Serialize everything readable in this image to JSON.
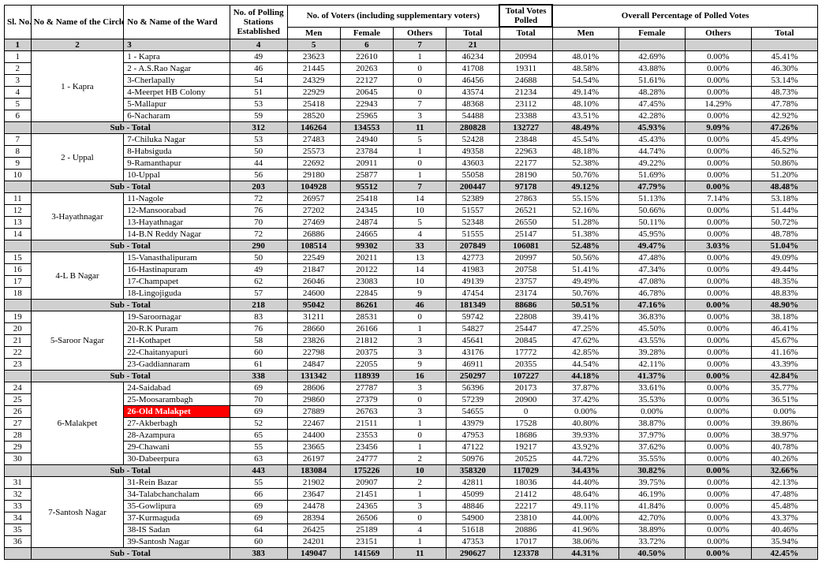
{
  "headers": {
    "sl": "Sl. No.",
    "circle": "No & Name of the Circle",
    "ward": "No & Name of the Ward",
    "ps": "No. of Polling Stations Established",
    "voters_group": "No. of Voters (including supplementary voters)",
    "tvp_group": "Total Votes Polled",
    "pct_group": "Overall Percentage of Polled Votes",
    "men": "Men",
    "female": "Female",
    "others": "Others",
    "total": "Total",
    "h_nums": [
      "1",
      "2",
      "3",
      "4",
      "5",
      "6",
      "7",
      "21"
    ]
  },
  "subtotal_label": "Sub - Total",
  "circles": [
    {
      "name": "1 - Kapra",
      "rows": [
        {
          "sl": "1",
          "ward": "1 - Kapra",
          "ps": "49",
          "m": "23623",
          "f": "22610",
          "o": "1",
          "t": "46234",
          "tvp": "20994",
          "pm": "48.01%",
          "pf": "42.69%",
          "po": "0.00%",
          "pt": "45.41%"
        },
        {
          "sl": "2",
          "ward": "2 - A.S.Rao Nagar",
          "ps": "46",
          "m": "21445",
          "f": "20263",
          "o": "0",
          "t": "41708",
          "tvp": "19311",
          "pm": "48.58%",
          "pf": "43.88%",
          "po": "0.00%",
          "pt": "46.30%"
        },
        {
          "sl": "3",
          "ward": "3-Cherlapally",
          "ps": "54",
          "m": "24329",
          "f": "22127",
          "o": "0",
          "t": "46456",
          "tvp": "24688",
          "pm": "54.54%",
          "pf": "51.61%",
          "po": "0.00%",
          "pt": "53.14%"
        },
        {
          "sl": "4",
          "ward": "4-Meerpet HB Colony",
          "ps": "51",
          "m": "22929",
          "f": "20645",
          "o": "0",
          "t": "43574",
          "tvp": "21234",
          "pm": "49.14%",
          "pf": "48.28%",
          "po": "0.00%",
          "pt": "48.73%"
        },
        {
          "sl": "5",
          "ward": "5-Mallapur",
          "ps": "53",
          "m": "25418",
          "f": "22943",
          "o": "7",
          "t": "48368",
          "tvp": "23112",
          "pm": "48.10%",
          "pf": "47.45%",
          "po": "14.29%",
          "pt": "47.78%"
        },
        {
          "sl": "6",
          "ward": "6-Nacharam",
          "ps": "59",
          "m": "28520",
          "f": "25965",
          "o": "3",
          "t": "54488",
          "tvp": "23388",
          "pm": "43.51%",
          "pf": "42.28%",
          "po": "0.00%",
          "pt": "42.92%"
        }
      ],
      "sub": {
        "ps": "312",
        "m": "146264",
        "f": "134553",
        "o": "11",
        "t": "280828",
        "tvp": "132727",
        "pm": "48.49%",
        "pf": "45.93%",
        "po": "9.09%",
        "pt": "47.26%"
      }
    },
    {
      "name": "2 - Uppal",
      "rows": [
        {
          "sl": "7",
          "ward": "7-Chiluka Nagar",
          "ps": "53",
          "m": "27483",
          "f": "24940",
          "o": "5",
          "t": "52428",
          "tvp": "23848",
          "pm": "45.54%",
          "pf": "45.43%",
          "po": "0.00%",
          "pt": "45.49%"
        },
        {
          "sl": "8",
          "ward": "8-Habsiguda",
          "ps": "50",
          "m": "25573",
          "f": "23784",
          "o": "1",
          "t": "49358",
          "tvp": "22963",
          "pm": "48.18%",
          "pf": "44.74%",
          "po": "0.00%",
          "pt": "46.52%"
        },
        {
          "sl": "9",
          "ward": "9-Ramanthapur",
          "ps": "44",
          "m": "22692",
          "f": "20911",
          "o": "0",
          "t": "43603",
          "tvp": "22177",
          "pm": "52.38%",
          "pf": "49.22%",
          "po": "0.00%",
          "pt": "50.86%"
        },
        {
          "sl": "10",
          "ward": "10-Uppal",
          "ps": "56",
          "m": "29180",
          "f": "25877",
          "o": "1",
          "t": "55058",
          "tvp": "28190",
          "pm": "50.76%",
          "pf": "51.69%",
          "po": "0.00%",
          "pt": "51.20%"
        }
      ],
      "sub": {
        "ps": "203",
        "m": "104928",
        "f": "95512",
        "o": "7",
        "t": "200447",
        "tvp": "97178",
        "pm": "49.12%",
        "pf": "47.79%",
        "po": "0.00%",
        "pt": "48.48%"
      }
    },
    {
      "name": "3-Hayathnagar",
      "rows": [
        {
          "sl": "11",
          "ward": "11-Nagole",
          "ps": "72",
          "m": "26957",
          "f": "25418",
          "o": "14",
          "t": "52389",
          "tvp": "27863",
          "pm": "55.15%",
          "pf": "51.13%",
          "po": "7.14%",
          "pt": "53.18%"
        },
        {
          "sl": "12",
          "ward": "12-Mansoorabad",
          "ps": "76",
          "m": "27202",
          "f": "24345",
          "o": "10",
          "t": "51557",
          "tvp": "26521",
          "pm": "52.16%",
          "pf": "50.66%",
          "po": "0.00%",
          "pt": "51.44%"
        },
        {
          "sl": "13",
          "ward": "13-Hayathnagar",
          "ps": "70",
          "m": "27469",
          "f": "24874",
          "o": "5",
          "t": "52348",
          "tvp": "26550",
          "pm": "51.28%",
          "pf": "50.11%",
          "po": "0.00%",
          "pt": "50.72%"
        },
        {
          "sl": "14",
          "ward": "14-B.N Reddy Nagar",
          "ps": "72",
          "m": "26886",
          "f": "24665",
          "o": "4",
          "t": "51555",
          "tvp": "25147",
          "pm": "51.38%",
          "pf": "45.95%",
          "po": "0.00%",
          "pt": "48.78%"
        }
      ],
      "sub": {
        "ps": "290",
        "m": "108514",
        "f": "99302",
        "o": "33",
        "t": "207849",
        "tvp": "106081",
        "pm": "52.48%",
        "pf": "49.47%",
        "po": "3.03%",
        "pt": "51.04%"
      }
    },
    {
      "name": "4-L B Nagar",
      "rows": [
        {
          "sl": "15",
          "ward": "15-Vanasthalipuram",
          "ps": "50",
          "m": "22549",
          "f": "20211",
          "o": "13",
          "t": "42773",
          "tvp": "20997",
          "pm": "50.56%",
          "pf": "47.48%",
          "po": "0.00%",
          "pt": "49.09%"
        },
        {
          "sl": "16",
          "ward": "16-Hastinapuram",
          "ps": "49",
          "m": "21847",
          "f": "20122",
          "o": "14",
          "t": "41983",
          "tvp": "20758",
          "pm": "51.41%",
          "pf": "47.34%",
          "po": "0.00%",
          "pt": "49.44%"
        },
        {
          "sl": "17",
          "ward": "17-Champapet",
          "ps": "62",
          "m": "26046",
          "f": "23083",
          "o": "10",
          "t": "49139",
          "tvp": "23757",
          "pm": "49.49%",
          "pf": "47.08%",
          "po": "0.00%",
          "pt": "48.35%"
        },
        {
          "sl": "18",
          "ward": "18-Lingojiguda",
          "ps": "57",
          "m": "24600",
          "f": "22845",
          "o": "9",
          "t": "47454",
          "tvp": "23174",
          "pm": "50.76%",
          "pf": "46.78%",
          "po": "0.00%",
          "pt": "48.83%"
        }
      ],
      "sub": {
        "ps": "218",
        "m": "95042",
        "f": "86261",
        "o": "46",
        "t": "181349",
        "tvp": "88686",
        "pm": "50.51%",
        "pf": "47.16%",
        "po": "0.00%",
        "pt": "48.90%"
      }
    },
    {
      "name": "5-Saroor Nagar",
      "rows": [
        {
          "sl": "19",
          "ward": "19-Saroornagar",
          "ps": "83",
          "m": "31211",
          "f": "28531",
          "o": "0",
          "t": "59742",
          "tvp": "22808",
          "pm": "39.41%",
          "pf": "36.83%",
          "po": "0.00%",
          "pt": "38.18%"
        },
        {
          "sl": "20",
          "ward": "20-R.K Puram",
          "ps": "76",
          "m": "28660",
          "f": "26166",
          "o": "1",
          "t": "54827",
          "tvp": "25447",
          "pm": "47.25%",
          "pf": "45.50%",
          "po": "0.00%",
          "pt": "46.41%"
        },
        {
          "sl": "21",
          "ward": "21-Kothapet",
          "ps": "58",
          "m": "23826",
          "f": "21812",
          "o": "3",
          "t": "45641",
          "tvp": "20845",
          "pm": "47.62%",
          "pf": "43.55%",
          "po": "0.00%",
          "pt": "45.67%"
        },
        {
          "sl": "22",
          "ward": "22-Chaitanyapuri",
          "ps": "60",
          "m": "22798",
          "f": "20375",
          "o": "3",
          "t": "43176",
          "tvp": "17772",
          "pm": "42.85%",
          "pf": "39.28%",
          "po": "0.00%",
          "pt": "41.16%"
        },
        {
          "sl": "23",
          "ward": "23-Gaddiannaram",
          "ps": "61",
          "m": "24847",
          "f": "22055",
          "o": "9",
          "t": "46911",
          "tvp": "20355",
          "pm": "44.54%",
          "pf": "42.11%",
          "po": "0.00%",
          "pt": "43.39%"
        }
      ],
      "sub": {
        "ps": "338",
        "m": "131342",
        "f": "118939",
        "o": "16",
        "t": "250297",
        "tvp": "107227",
        "pm": "44.18%",
        "pf": "41.37%",
        "po": "0.00%",
        "pt": "42.84%"
      }
    },
    {
      "name": "6-Malakpet",
      "rows": [
        {
          "sl": "24",
          "ward": "24-Saidabad",
          "ps": "69",
          "m": "28606",
          "f": "27787",
          "o": "3",
          "t": "56396",
          "tvp": "20173",
          "pm": "37.87%",
          "pf": "33.61%",
          "po": "0.00%",
          "pt": "35.77%"
        },
        {
          "sl": "25",
          "ward": "25-Moosarambagh",
          "ps": "70",
          "m": "29860",
          "f": "27379",
          "o": "0",
          "t": "57239",
          "tvp": "20900",
          "pm": "37.42%",
          "pf": "35.53%",
          "po": "0.00%",
          "pt": "36.51%"
        },
        {
          "sl": "26",
          "ward": "26-Old Malakpet",
          "ps": "69",
          "m": "27889",
          "f": "26763",
          "o": "3",
          "t": "54655",
          "tvp": "0",
          "pm": "0.00%",
          "pf": "0.00%",
          "po": "0.00%",
          "pt": "0.00%",
          "hl": true
        },
        {
          "sl": "27",
          "ward": "27-Akberbagh",
          "ps": "52",
          "m": "22467",
          "f": "21511",
          "o": "1",
          "t": "43979",
          "tvp": "17528",
          "pm": "40.80%",
          "pf": "38.87%",
          "po": "0.00%",
          "pt": "39.86%"
        },
        {
          "sl": "28",
          "ward": "28-Azampura",
          "ps": "65",
          "m": "24400",
          "f": "23553",
          "o": "0",
          "t": "47953",
          "tvp": "18686",
          "pm": "39.93%",
          "pf": "37.97%",
          "po": "0.00%",
          "pt": "38.97%"
        },
        {
          "sl": "29",
          "ward": "29-Chawani",
          "ps": "55",
          "m": "23665",
          "f": "23456",
          "o": "1",
          "t": "47122",
          "tvp": "19217",
          "pm": "43.92%",
          "pf": "37.62%",
          "po": "0.00%",
          "pt": "40.78%"
        },
        {
          "sl": "30",
          "ward": "30-Dabeerpura",
          "ps": "63",
          "m": "26197",
          "f": "24777",
          "o": "2",
          "t": "50976",
          "tvp": "20525",
          "pm": "44.72%",
          "pf": "35.55%",
          "po": "0.00%",
          "pt": "40.26%"
        }
      ],
      "sub": {
        "ps": "443",
        "m": "183084",
        "f": "175226",
        "o": "10",
        "t": "358320",
        "tvp": "117029",
        "pm": "34.43%",
        "pf": "30.82%",
        "po": "0.00%",
        "pt": "32.66%"
      }
    },
    {
      "name": "7-Santosh Nagar",
      "rows": [
        {
          "sl": "31",
          "ward": "31-Rein Bazar",
          "ps": "55",
          "m": "21902",
          "f": "20907",
          "o": "2",
          "t": "42811",
          "tvp": "18036",
          "pm": "44.40%",
          "pf": "39.75%",
          "po": "0.00%",
          "pt": "42.13%"
        },
        {
          "sl": "32",
          "ward": "34-Talabchanchalam",
          "ps": "66",
          "m": "23647",
          "f": "21451",
          "o": "1",
          "t": "45099",
          "tvp": "21412",
          "pm": "48.64%",
          "pf": "46.19%",
          "po": "0.00%",
          "pt": "47.48%"
        },
        {
          "sl": "33",
          "ward": "35-Gowlipura",
          "ps": "69",
          "m": "24478",
          "f": "24365",
          "o": "3",
          "t": "48846",
          "tvp": "22217",
          "pm": "49.11%",
          "pf": "41.84%",
          "po": "0.00%",
          "pt": "45.48%"
        },
        {
          "sl": "34",
          "ward": "37-Kurmaguda",
          "ps": "69",
          "m": "28394",
          "f": "26506",
          "o": "0",
          "t": "54900",
          "tvp": "23810",
          "pm": "44.00%",
          "pf": "42.70%",
          "po": "0.00%",
          "pt": "43.37%"
        },
        {
          "sl": "35",
          "ward": "38-IS Sadan",
          "ps": "64",
          "m": "26425",
          "f": "25189",
          "o": "4",
          "t": "51618",
          "tvp": "20886",
          "pm": "41.96%",
          "pf": "38.89%",
          "po": "0.00%",
          "pt": "40.46%"
        },
        {
          "sl": "36",
          "ward": "39-Santosh Nagar",
          "ps": "60",
          "m": "24201",
          "f": "23151",
          "o": "1",
          "t": "47353",
          "tvp": "17017",
          "pm": "38.06%",
          "pf": "33.72%",
          "po": "0.00%",
          "pt": "35.94%"
        }
      ],
      "sub": {
        "ps": "383",
        "m": "149047",
        "f": "141569",
        "o": "11",
        "t": "290627",
        "tvp": "123378",
        "pm": "44.31%",
        "pf": "40.50%",
        "po": "0.00%",
        "pt": "42.45%"
      }
    }
  ]
}
